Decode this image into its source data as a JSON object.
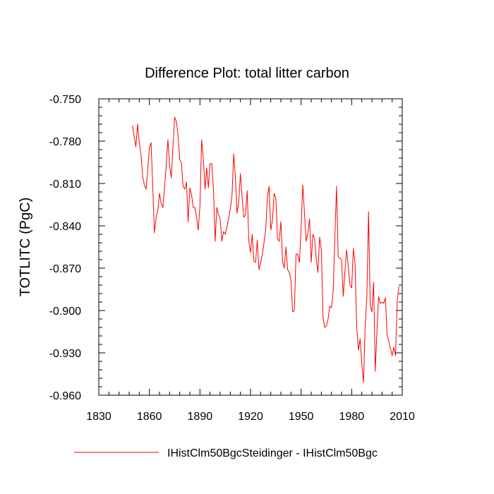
{
  "chart_data": {
    "type": "line",
    "title": "Difference Plot: total litter carbon",
    "ylabel": "TOTLITC  (PgC)",
    "xlabel": "",
    "xlim": [
      1830,
      2010
    ],
    "ylim": [
      -0.96,
      -0.75
    ],
    "x_ticks": [
      1830,
      1860,
      1890,
      1920,
      1950,
      1980,
      2010
    ],
    "x_tick_labels": [
      "1830",
      "1860",
      "1890",
      "1920",
      "1950",
      "1980",
      "2010"
    ],
    "y_ticks": [
      -0.75,
      -0.78,
      -0.81,
      -0.84,
      -0.87,
      -0.9,
      -0.93,
      -0.96
    ],
    "y_tick_labels": [
      "-0.750",
      "-0.780",
      "-0.810",
      "-0.840",
      "-0.870",
      "-0.900",
      "-0.930",
      "-0.960"
    ],
    "grid": false,
    "legend_position": "bottom",
    "series": [
      {
        "name": "IHistClm50BgcSteidinger - IHistClm50Bgc",
        "color": "#ff0000",
        "x_start": 1850,
        "x_step": 1,
        "values": [
          -0.769,
          -0.777,
          -0.784,
          -0.768,
          -0.781,
          -0.789,
          -0.805,
          -0.811,
          -0.814,
          -0.801,
          -0.785,
          -0.781,
          -0.812,
          -0.845,
          -0.834,
          -0.829,
          -0.817,
          -0.824,
          -0.827,
          -0.813,
          -0.797,
          -0.779,
          -0.797,
          -0.806,
          -0.784,
          -0.763,
          -0.766,
          -0.776,
          -0.793,
          -0.795,
          -0.812,
          -0.814,
          -0.809,
          -0.837,
          -0.813,
          -0.818,
          -0.827,
          -0.827,
          -0.834,
          -0.843,
          -0.826,
          -0.779,
          -0.792,
          -0.814,
          -0.799,
          -0.813,
          -0.796,
          -0.796,
          -0.813,
          -0.851,
          -0.827,
          -0.832,
          -0.835,
          -0.851,
          -0.844,
          -0.846,
          -0.841,
          -0.835,
          -0.828,
          -0.819,
          -0.789,
          -0.805,
          -0.831,
          -0.823,
          -0.803,
          -0.82,
          -0.834,
          -0.832,
          -0.815,
          -0.851,
          -0.859,
          -0.846,
          -0.865,
          -0.866,
          -0.85,
          -0.871,
          -0.866,
          -0.86,
          -0.852,
          -0.843,
          -0.82,
          -0.812,
          -0.843,
          -0.836,
          -0.817,
          -0.82,
          -0.849,
          -0.851,
          -0.837,
          -0.865,
          -0.87,
          -0.855,
          -0.871,
          -0.873,
          -0.879,
          -0.901,
          -0.9,
          -0.86,
          -0.86,
          -0.866,
          -0.841,
          -0.811,
          -0.831,
          -0.851,
          -0.845,
          -0.835,
          -0.866,
          -0.846,
          -0.849,
          -0.864,
          -0.873,
          -0.848,
          -0.857,
          -0.905,
          -0.912,
          -0.911,
          -0.906,
          -0.897,
          -0.898,
          -0.887,
          -0.849,
          -0.812,
          -0.862,
          -0.863,
          -0.864,
          -0.89,
          -0.872,
          -0.857,
          -0.869,
          -0.882,
          -0.884,
          -0.856,
          -0.867,
          -0.912,
          -0.928,
          -0.92,
          -0.938,
          -0.951,
          -0.911,
          -0.89,
          -0.83,
          -0.896,
          -0.901,
          -0.88,
          -0.943,
          -0.914,
          -0.89,
          -0.895,
          -0.894,
          -0.895,
          -0.891,
          -0.917,
          -0.922,
          -0.927,
          -0.932,
          -0.926,
          -0.932,
          -0.894,
          -0.883
        ]
      }
    ]
  }
}
